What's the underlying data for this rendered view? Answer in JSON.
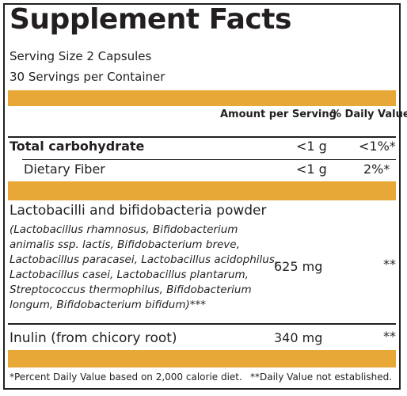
{
  "label": {
    "title": "Supplement Facts",
    "serving_size": "Serving Size 2 Capsules",
    "servings_per_container": "30 Servings per Container",
    "header_amount": "Amount per Serving",
    "header_dv": "% Daily Value",
    "rows": [
      {
        "name": "Total carbohydrate",
        "amount": "<1 g",
        "dv": "<1%*"
      },
      {
        "name": "Dietary Fiber",
        "amount": "<1 g",
        "dv": "2%*"
      }
    ],
    "blend": {
      "name": "Lactobacilli and bifidobacteria powder",
      "detail_lines": [
        "(Lactobacillus rhamnosus, Bifidobacterium",
        "animalis ssp. lactis, Bifidobacterium breve,",
        "Lactobacillus paracasei, Lactobacillus acidophilus,",
        "Lactobacillus casei, Lactobacillus plantarum,",
        "Streptococcus thermophilus, Bifidobacterium",
        "longum, Bifidobacterium bifidum)***"
      ],
      "amount": "625 mg",
      "dv": "**"
    },
    "inulin": {
      "name": "Inulin (from chicory root)",
      "amount": "340 mg",
      "dv": "**"
    },
    "footnote_left": "*Percent Daily Value based on 2,000 calorie diet.",
    "footnote_right": "**Daily Value not established.",
    "accent_color": "#e8a838"
  }
}
